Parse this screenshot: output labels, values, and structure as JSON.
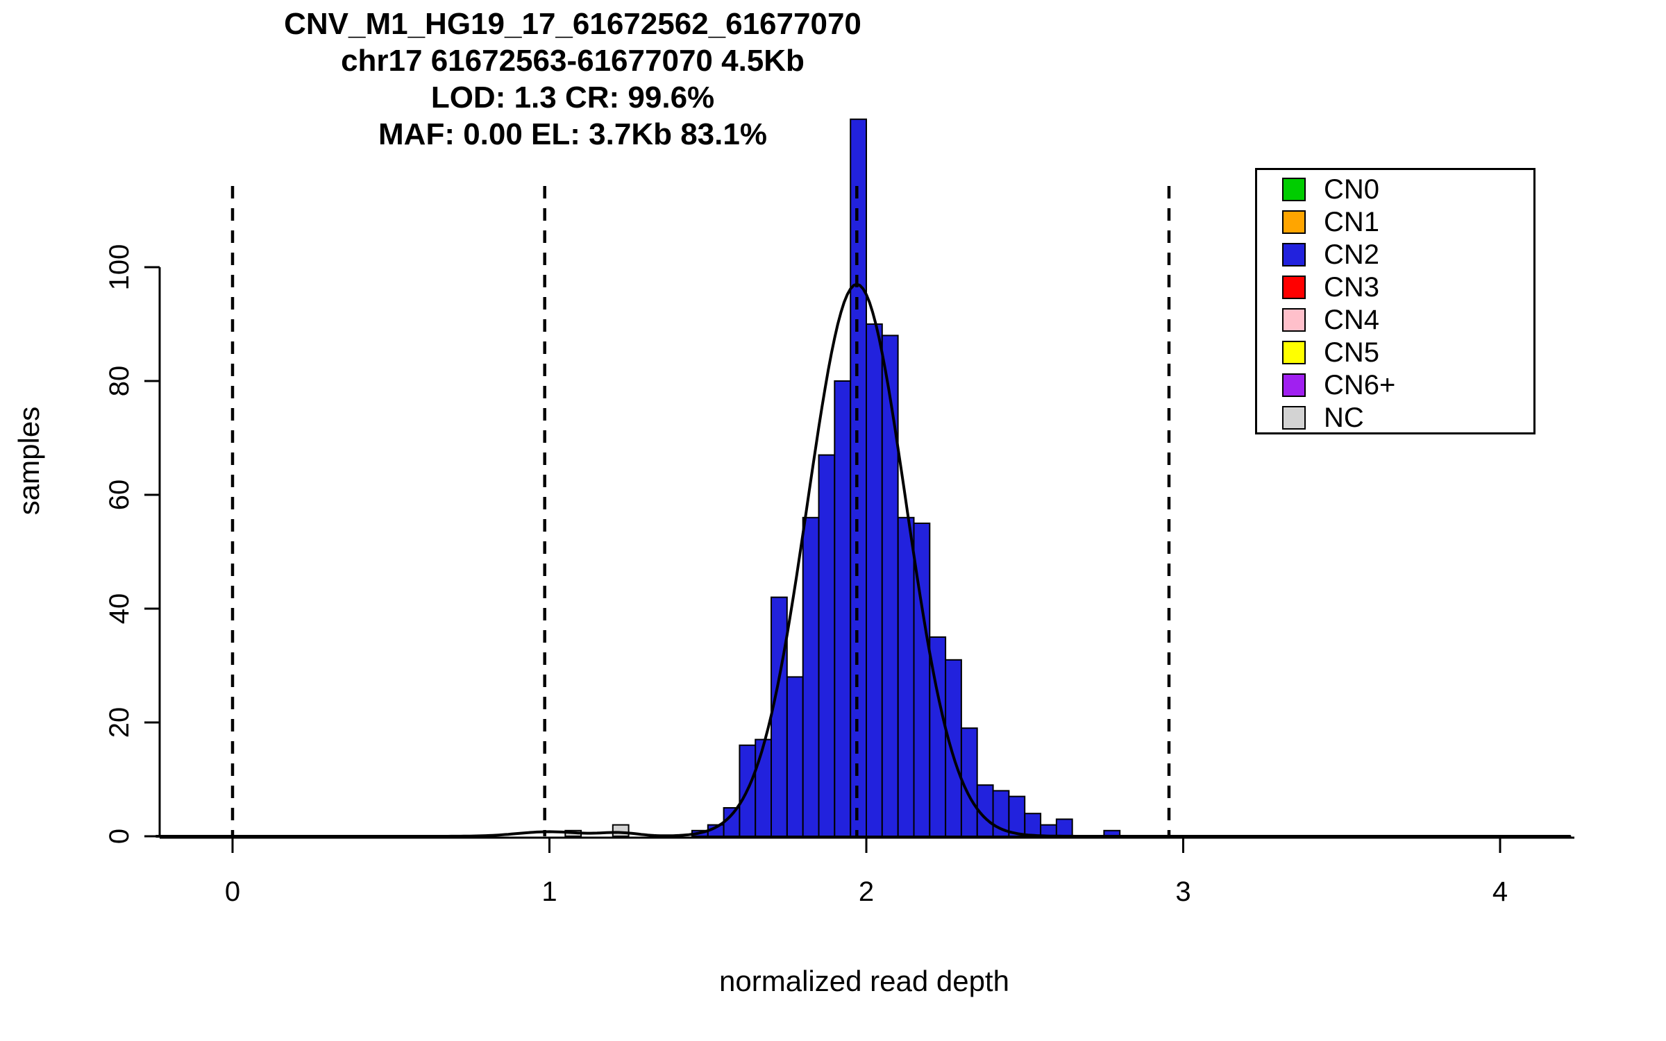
{
  "chart_data": {
    "type": "bar",
    "chart_kind": "histogram-with-fit",
    "titles": [
      "CNV_M1_HG19_17_61672562_61677070",
      "chr17 61672563-61677070 4.5Kb",
      "LOD: 1.3 CR: 99.6%",
      "MAF: 0.00 EL: 3.7Kb 83.1%"
    ],
    "xlabel": "normalized read depth",
    "ylabel": "samples",
    "x_ticks": [
      0,
      1,
      2,
      3,
      4
    ],
    "y_ticks": [
      0,
      20,
      40,
      60,
      80,
      100
    ],
    "xlim": [
      -0.25,
      4.25
    ],
    "ylim": [
      0,
      128
    ],
    "grid": false,
    "bin_width": 0.05,
    "bars": [
      {
        "x": 1.05,
        "count": 1,
        "cn": "NC"
      },
      {
        "x": 1.2,
        "count": 2,
        "cn": "NC"
      },
      {
        "x": 1.45,
        "count": 1,
        "cn": "CN2"
      },
      {
        "x": 1.5,
        "count": 2,
        "cn": "CN2"
      },
      {
        "x": 1.55,
        "count": 5,
        "cn": "CN2"
      },
      {
        "x": 1.6,
        "count": 16,
        "cn": "CN2"
      },
      {
        "x": 1.65,
        "count": 17,
        "cn": "CN2"
      },
      {
        "x": 1.7,
        "count": 42,
        "cn": "CN2"
      },
      {
        "x": 1.75,
        "count": 28,
        "cn": "CN2"
      },
      {
        "x": 1.8,
        "count": 56,
        "cn": "CN2"
      },
      {
        "x": 1.85,
        "count": 67,
        "cn": "CN2"
      },
      {
        "x": 1.9,
        "count": 80,
        "cn": "CN2"
      },
      {
        "x": 1.95,
        "count": 126,
        "cn": "CN2"
      },
      {
        "x": 2.0,
        "count": 90,
        "cn": "CN2"
      },
      {
        "x": 2.05,
        "count": 88,
        "cn": "CN2"
      },
      {
        "x": 2.1,
        "count": 56,
        "cn": "CN2"
      },
      {
        "x": 2.15,
        "count": 55,
        "cn": "CN2"
      },
      {
        "x": 2.2,
        "count": 35,
        "cn": "CN2"
      },
      {
        "x": 2.25,
        "count": 31,
        "cn": "CN2"
      },
      {
        "x": 2.3,
        "count": 19,
        "cn": "CN2"
      },
      {
        "x": 2.35,
        "count": 9,
        "cn": "CN2"
      },
      {
        "x": 2.4,
        "count": 8,
        "cn": "CN2"
      },
      {
        "x": 2.45,
        "count": 7,
        "cn": "CN2"
      },
      {
        "x": 2.5,
        "count": 4,
        "cn": "CN2"
      },
      {
        "x": 2.55,
        "count": 2,
        "cn": "CN2"
      },
      {
        "x": 2.6,
        "count": 3,
        "cn": "CN2"
      },
      {
        "x": 2.75,
        "count": 1,
        "cn": "CN2"
      }
    ],
    "fit_curve": {
      "shape": "gaussian",
      "mean": 1.97,
      "sd": 0.155,
      "amplitude": 97,
      "x_range": [
        -0.24,
        4.22
      ],
      "minor_components": [
        {
          "mean": 1.0,
          "sd": 0.1,
          "amplitude": 0.8
        },
        {
          "mean": 1.22,
          "sd": 0.06,
          "amplitude": 0.6
        }
      ]
    },
    "cn_boundary_lines_x": [
      0,
      0.985,
      1.97,
      2.955
    ],
    "legend": {
      "position": "top-right",
      "entries": [
        "CN0",
        "CN1",
        "CN2",
        "CN3",
        "CN4",
        "CN5",
        "CN6+",
        "NC"
      ]
    },
    "colors": {
      "CN0": "#00CD00",
      "CN1": "#FFA500",
      "CN2": "#2222DD",
      "CN3": "#FF0000",
      "CN4": "#FFC0CB",
      "CN5": "#FFFF00",
      "CN6+": "#A020F0",
      "NC": "#D3D3D3"
    },
    "axis_color": "#000000",
    "background": "#FFFFFF"
  }
}
